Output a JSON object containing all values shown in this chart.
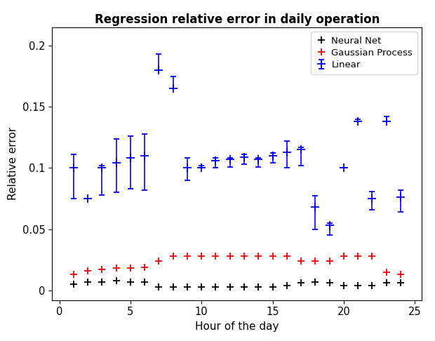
{
  "title": "Regression relative error in daily operation",
  "xlabel": "Hour of the day",
  "ylabel": "Relative error",
  "ylim": [
    -0.008,
    0.215
  ],
  "xlim": [
    -0.5,
    25.5
  ],
  "legend_labels": [
    "Neural Net",
    "Gaussian Process",
    "Linear"
  ],
  "legend_colors": [
    "black",
    "red",
    "blue"
  ],
  "nn_x": [
    1,
    2,
    3,
    4,
    5,
    6,
    7,
    8,
    9,
    10,
    11,
    12,
    13,
    14,
    15,
    16,
    17,
    18,
    19,
    20,
    21,
    22,
    23,
    24
  ],
  "nn_y": [
    0.005,
    0.007,
    0.007,
    0.008,
    0.007,
    0.007,
    0.003,
    0.003,
    0.003,
    0.003,
    0.003,
    0.003,
    0.003,
    0.003,
    0.003,
    0.004,
    0.006,
    0.007,
    0.006,
    0.004,
    0.004,
    0.004,
    0.006,
    0.006
  ],
  "gp_x": [
    1,
    2,
    3,
    4,
    5,
    6,
    7,
    8,
    9,
    10,
    11,
    12,
    13,
    14,
    15,
    16,
    17,
    18,
    19,
    20,
    21,
    22,
    23,
    24
  ],
  "gp_y": [
    0.013,
    0.016,
    0.017,
    0.018,
    0.018,
    0.019,
    0.024,
    0.028,
    0.028,
    0.028,
    0.028,
    0.028,
    0.028,
    0.028,
    0.028,
    0.028,
    0.024,
    0.024,
    0.024,
    0.028,
    0.028,
    0.028,
    0.015,
    0.013
  ],
  "lin_x": [
    1,
    2,
    3,
    4,
    5,
    6,
    7,
    8,
    9,
    10,
    11,
    12,
    13,
    14,
    15,
    16,
    17,
    18,
    19,
    20,
    21,
    22,
    23,
    24
  ],
  "lin_center": [
    0.1,
    0.075,
    0.1,
    0.104,
    0.108,
    0.11,
    0.18,
    0.165,
    0.1,
    0.1,
    0.106,
    0.107,
    0.109,
    0.107,
    0.11,
    0.113,
    0.115,
    0.068,
    0.053,
    0.1,
    0.138,
    0.075,
    0.138,
    0.076
  ],
  "lin_err_lo": [
    0.025,
    0.0,
    0.022,
    0.024,
    0.025,
    0.028,
    0.0,
    0.0,
    0.01,
    0.0,
    0.006,
    0.006,
    0.006,
    0.006,
    0.006,
    0.013,
    0.013,
    0.018,
    0.008,
    0.0,
    0.0,
    0.009,
    0.0,
    0.012
  ],
  "lin_err_hi": [
    0.011,
    0.0,
    0.002,
    0.02,
    0.018,
    0.018,
    0.013,
    0.01,
    0.008,
    0.002,
    0.002,
    0.001,
    0.002,
    0.001,
    0.002,
    0.009,
    0.002,
    0.009,
    0.002,
    0.0,
    0.002,
    0.006,
    0.004,
    0.006
  ]
}
